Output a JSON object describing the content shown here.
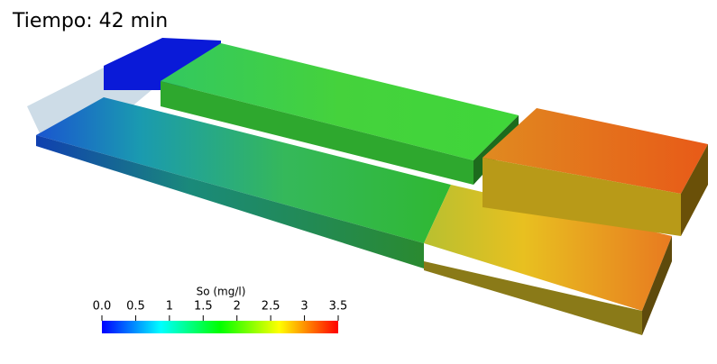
{
  "title": "Tiempo: 42 min",
  "colorbar": {
    "label": "So (mg/l)",
    "range": [
      0,
      3.5
    ],
    "ticks": [
      {
        "value": 0,
        "label": "0.0"
      },
      0.5,
      1,
      1.5,
      2,
      2.5,
      3,
      3.5
    ],
    "colors": [
      "#0000ff",
      "#00ffff",
      "#00ff00",
      "#ffff00",
      "#ff0000"
    ]
  }
}
